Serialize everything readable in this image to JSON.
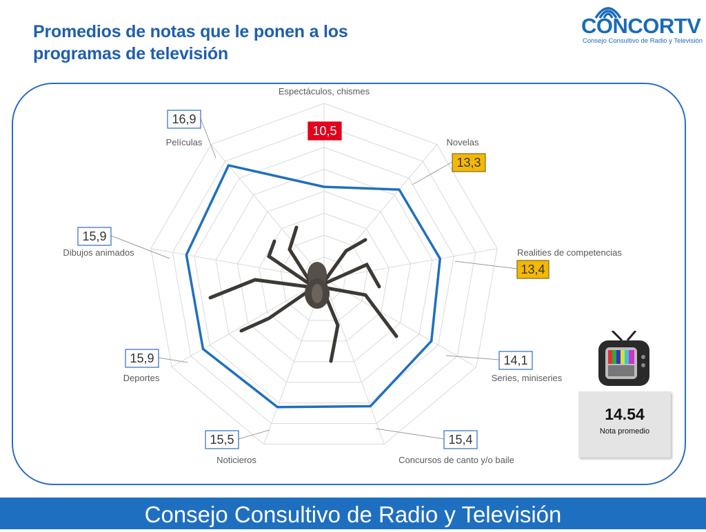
{
  "header": {
    "title_line1": "Promedios de notas que le ponen a los",
    "title_line2": "programas de televisión"
  },
  "logo": {
    "name": "CONCORTV",
    "subtitle": "Consejo Consultivo de Radio y Televisión"
  },
  "summary": {
    "value": "14.54",
    "label": "Nota promedio"
  },
  "footer": {
    "text": "Consejo Consultivo de Radio y Televisión"
  },
  "colors": {
    "series": "#1f6fc0",
    "label_red": "#e2001a",
    "label_yellow": "#f5b800",
    "title": "#1f5fae",
    "grid": "#d9d9d9"
  },
  "chart_data": {
    "type": "radar",
    "title": "",
    "rmax": 20,
    "rings": 8,
    "categories": [
      "Espectáculos, chismes",
      "Novelas",
      "Realities de competencias",
      "Series, miniseries",
      "Concursos de canto y/o baile",
      "Noticieros",
      "Deportes",
      "Dibujos animados",
      "Películas"
    ],
    "values": [
      10.5,
      13.3,
      13.4,
      14.1,
      15.4,
      15.5,
      15.9,
      15.9,
      16.9
    ],
    "value_labels": [
      "10,5",
      "13,3",
      "13,4",
      "14,1",
      "15,4",
      "15,5",
      "15,9",
      "15,9",
      "16,9"
    ],
    "label_styles": [
      "red",
      "yellow",
      "yellow",
      "plain",
      "plain",
      "plain",
      "plain",
      "plain",
      "plain"
    ]
  }
}
